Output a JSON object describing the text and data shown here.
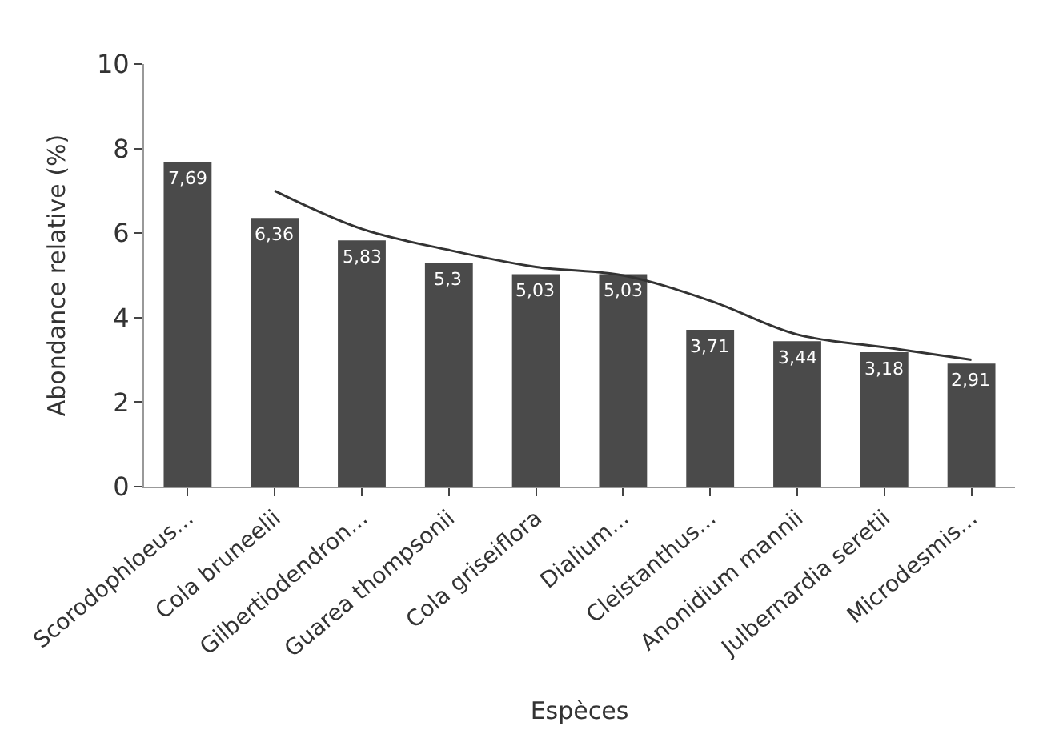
{
  "chart_data": {
    "type": "bar",
    "xlabel": "Espèces",
    "ylabel": "Abondance relative (%)",
    "categories": [
      "Scorodophloeus...",
      "Cola bruneelii",
      "Gilbertiodendron...",
      "Guarea thompsonii",
      "Cola griseiflora",
      "Dialium...",
      "Cleistanthus...",
      "Anonidium mannii",
      "Julbernardia seretii",
      "Microdesmis..."
    ],
    "series": [
      {
        "color": "#4a4a4a",
        "values": [
          7.69,
          6.36,
          5.83,
          5.3,
          5.03,
          5.03,
          3.71,
          3.44,
          3.18,
          2.91
        ],
        "value_labels": [
          "7,69",
          "6,36",
          "5,83",
          "5,3",
          "5,03",
          "5,03",
          "3,71",
          "3,44",
          "3,18",
          "2,91"
        ]
      },
      {
        "type": "line",
        "color": "#333333",
        "values": [
          null,
          7.0,
          6.1,
          5.6,
          5.2,
          5.0,
          4.4,
          3.6,
          3.3,
          3.0
        ]
      }
    ],
    "ylim": [
      0,
      10
    ],
    "yticks": [
      0,
      2,
      4,
      6,
      8,
      10
    ]
  }
}
